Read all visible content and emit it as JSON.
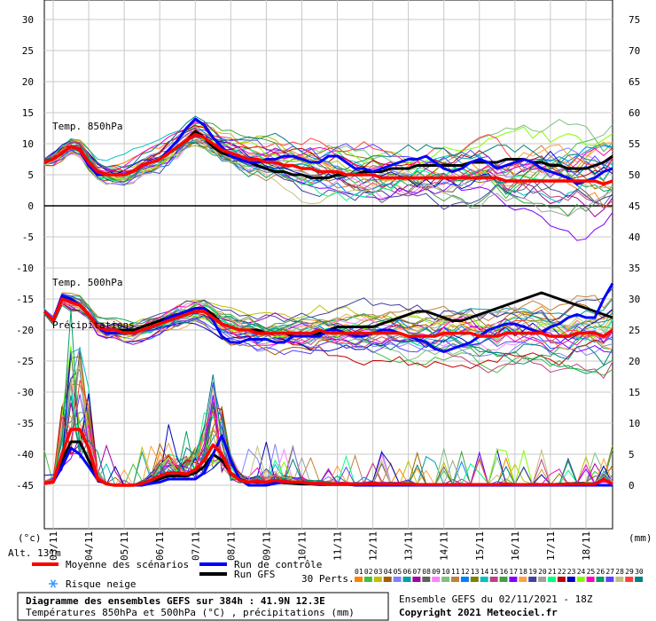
{
  "chart_data": {
    "type": "line",
    "left_axis": {
      "unit": "(°c)",
      "ticks": [
        "30",
        "25",
        "20",
        "15",
        "10",
        "5",
        "0",
        "-5",
        "-10",
        "-15",
        "-20",
        "-25",
        "-30",
        "-35",
        "-40",
        "-45"
      ],
      "range": [
        -45,
        30
      ]
    },
    "right_axis": {
      "unit": "(mm)",
      "ticks": [
        "75",
        "70",
        "65",
        "60",
        "55",
        "50",
        "45",
        "40",
        "35",
        "30",
        "25",
        "20",
        "15",
        "10",
        "5",
        "0"
      ],
      "range": [
        0,
        75
      ]
    },
    "dates": [
      "03/11",
      "04/11",
      "05/11",
      "06/11",
      "07/11",
      "08/11",
      "09/11",
      "10/11",
      "11/11",
      "12/11",
      "13/11",
      "14/11",
      "15/11",
      "16/11",
      "17/11",
      "18/11"
    ],
    "panel_labels": {
      "t850": "Temp. 850hPa",
      "t500": "Temp. 500hPa",
      "precip": "Précipitations"
    },
    "x_hours": [
      0,
      6,
      12,
      18,
      24,
      30,
      36,
      42,
      48,
      54,
      60,
      66,
      72,
      78,
      84,
      90,
      96,
      102,
      108,
      114,
      120,
      126,
      132,
      138,
      144,
      150,
      156,
      162,
      168,
      174,
      180,
      186,
      192,
      198,
      204,
      210,
      216,
      222,
      228,
      234,
      240,
      246,
      252,
      258,
      264,
      270,
      276,
      282,
      288,
      294,
      300,
      306,
      312,
      318,
      324,
      330,
      336,
      342,
      348,
      354,
      360,
      366,
      372,
      378,
      384
    ],
    "series": [
      {
        "name": "Moyenne des scénarios",
        "color": "#ff0000",
        "t850": [
          7,
          7.5,
          8.5,
          9.5,
          9,
          7,
          5.5,
          5,
          5,
          5,
          5.5,
          6.5,
          7,
          7.5,
          8.5,
          9.5,
          10.5,
          11.5,
          11,
          10,
          9,
          8.5,
          8,
          7.5,
          7.5,
          7,
          7,
          6.5,
          6.5,
          6,
          6,
          5.5,
          5.5,
          5.5,
          5,
          5,
          5,
          5,
          4.5,
          4.5,
          4.5,
          4.5,
          4.5,
          4.5,
          4.5,
          4.5,
          4.5,
          4.5,
          4.5,
          4.5,
          4.5,
          4.5,
          4,
          4,
          4,
          4,
          4,
          4,
          4,
          4,
          4,
          4,
          4,
          3.5,
          4
        ],
        "t500": [
          -17,
          -18.5,
          -15,
          -15.5,
          -16,
          -17.5,
          -19.5,
          -20,
          -20,
          -20.5,
          -20.5,
          -20,
          -19.5,
          -19,
          -18.5,
          -18,
          -17.5,
          -17,
          -17,
          -18,
          -19,
          -19.5,
          -20,
          -20,
          -20.5,
          -20.5,
          -20.5,
          -20.5,
          -20.5,
          -20.5,
          -20.5,
          -20,
          -20.5,
          -20.5,
          -20.5,
          -20.5,
          -20.5,
          -20.5,
          -20.5,
          -20.5,
          -20.5,
          -21,
          -21,
          -21,
          -21,
          -20.5,
          -20.5,
          -20.5,
          -20.5,
          -21,
          -21,
          -21,
          -20.5,
          -20.5,
          -20.5,
          -20.5,
          -20.5,
          -21,
          -21,
          -21,
          -20.5,
          -20.5,
          -20.5,
          -21,
          -20
        ],
        "precip": [
          0.3,
          0.5,
          5,
          9,
          9,
          6,
          1,
          0.2,
          0,
          0,
          0,
          0.3,
          0.8,
          1.5,
          2,
          2,
          1.8,
          2.5,
          4,
          6.5,
          5,
          2,
          0.8,
          0.5,
          0.6,
          0.5,
          0.8,
          0.6,
          0.5,
          0.5,
          0.3,
          0.3,
          0.2,
          0.2,
          0.2,
          0.2,
          0.2,
          0.3,
          0.2,
          0.2,
          0.2,
          0.2,
          0.1,
          0.1,
          0.1,
          0.1,
          0.1,
          0.1,
          0.1,
          0.1,
          0.1,
          0.1,
          0.2,
          0.1,
          0.1,
          0.1,
          0.1,
          0.1,
          0.1,
          0.2,
          0.2,
          0.2,
          0.2,
          1,
          0.2
        ]
      },
      {
        "name": "Run de contrôle",
        "color": "#0000ff",
        "t850": [
          7,
          7.5,
          8.5,
          9.5,
          9,
          6.5,
          5,
          5,
          5,
          5,
          5.5,
          6.5,
          7,
          7.5,
          9,
          10.5,
          12.5,
          14,
          13,
          11,
          9.5,
          8,
          7.5,
          7,
          7,
          7.5,
          7.5,
          8,
          8,
          7.5,
          7,
          7,
          8,
          8,
          7,
          6,
          6,
          5.5,
          6,
          6.5,
          7,
          7.5,
          7.5,
          8,
          7,
          6,
          5.5,
          6,
          7,
          7.5,
          7,
          6,
          6.5,
          7,
          7.5,
          7,
          6,
          5.5,
          5,
          4.5,
          3.5,
          4,
          4.5,
          5.5,
          6
        ],
        "t500": [
          -17,
          -18.5,
          -14.5,
          -15,
          -16,
          -17.5,
          -19.5,
          -20.5,
          -20.5,
          -20.5,
          -20.5,
          -20,
          -19.5,
          -19,
          -18,
          -17.5,
          -17,
          -16.5,
          -16.5,
          -18.5,
          -21,
          -22,
          -22,
          -21.5,
          -21.5,
          -21.5,
          -22,
          -22,
          -21,
          -21,
          -21,
          -21,
          -20,
          -20,
          -20.5,
          -21,
          -21,
          -20.5,
          -20,
          -20,
          -20.5,
          -21,
          -21.5,
          -22,
          -23,
          -23.5,
          -23,
          -22.5,
          -22,
          -21,
          -20,
          -19.5,
          -19,
          -19,
          -19.5,
          -20,
          -20.5,
          -19.5,
          -19,
          -18,
          -17.5,
          -18,
          -18,
          -15,
          -12.5
        ],
        "precip": [
          0.3,
          0.5,
          3,
          6,
          5,
          3,
          1,
          0.2,
          0,
          0,
          0,
          0,
          0.3,
          0.5,
          1,
          1,
          1,
          1,
          2,
          5,
          8,
          4,
          1,
          0,
          0,
          0,
          0.3,
          0.5,
          0.5,
          0.4,
          0.3,
          0.2,
          0.2,
          0.2,
          0.2,
          0,
          0,
          0,
          0,
          0,
          0,
          0,
          0,
          0,
          0,
          0,
          0,
          0,
          0,
          0,
          0,
          0,
          0,
          0,
          0,
          0,
          0,
          0,
          0,
          0,
          0,
          0,
          0,
          0,
          0
        ]
      },
      {
        "name": "Run GFS",
        "color": "#000000",
        "t850": [
          7,
          7.5,
          8.5,
          9.5,
          9,
          6.5,
          5,
          5,
          5,
          5,
          5.5,
          6.5,
          7,
          7.5,
          8.5,
          9.5,
          10.5,
          12,
          11,
          9.5,
          8.5,
          8,
          7.5,
          7,
          6.5,
          6,
          5.5,
          5.5,
          5,
          5,
          4.5,
          4.5,
          4.5,
          5,
          5,
          5,
          5.5,
          5.5,
          5.5,
          6,
          6,
          6,
          6.5,
          6.5,
          6.5,
          6.5,
          6.5,
          6.5,
          7,
          7,
          7,
          7,
          7.5,
          7.5,
          7.5,
          7,
          7,
          6.5,
          6.5,
          6,
          6,
          6,
          6.5,
          7,
          8
        ],
        "t500": [
          -17,
          -18.5,
          -14.5,
          -15,
          -16,
          -17.5,
          -19.5,
          -20,
          -20,
          -20,
          -20,
          -19.5,
          -19,
          -18.5,
          -18,
          -17.5,
          -17,
          -16.5,
          -16.5,
          -17.5,
          -19,
          -19.5,
          -20,
          -20,
          -20,
          -20.5,
          -20.5,
          -20.5,
          -21,
          -21,
          -21,
          -20.5,
          -20,
          -19.5,
          -19.5,
          -19.5,
          -19.5,
          -19.5,
          -19,
          -18.5,
          -18,
          -17.5,
          -17,
          -17,
          -17.5,
          -18,
          -18.5,
          -18.5,
          -18,
          -17.5,
          -17,
          -16.5,
          -16,
          -15.5,
          -15,
          -14.5,
          -14,
          -14.5,
          -15,
          -15.5,
          -16,
          -16.5,
          -17,
          -17.5,
          -18
        ],
        "precip": [
          0.3,
          0.5,
          4,
          7,
          7,
          4,
          1,
          0.2,
          0,
          0,
          0,
          0.3,
          0.5,
          1,
          1.5,
          1.5,
          1.5,
          2,
          3,
          5,
          4,
          2,
          1,
          0.5,
          0.5,
          0.5,
          0.5,
          0.4,
          0.3,
          0.2,
          0.2,
          0.1,
          0.1,
          0.1,
          0.1,
          0.1,
          0.1,
          0,
          0,
          0,
          0,
          0,
          0,
          0,
          0,
          0,
          0,
          0,
          0,
          0,
          0,
          0,
          0,
          0,
          0,
          0,
          0,
          0,
          0,
          0,
          0,
          0,
          0,
          0,
          0
        ]
      }
    ],
    "n_perturbations": 30,
    "perturbation_colors": [
      "#ff8000",
      "#40c040",
      "#c0c000",
      "#a06000",
      "#8080ff",
      "#00a0a0",
      "#a000a0",
      "#606060",
      "#ff80ff",
      "#80c080",
      "#c08040",
      "#0080ff",
      "#808000",
      "#00c0c0",
      "#c04080",
      "#40a040",
      "#8000ff",
      "#ffa040",
      "#4040a0",
      "#a0a0a0",
      "#00ff80",
      "#c00000",
      "#0000c0",
      "#80ff00",
      "#ff00c0",
      "#00a060",
      "#6040ff",
      "#c0c080",
      "#ff4040",
      "#008080"
    ]
  },
  "legend": {
    "mean_label": "Moyenne des scénarios",
    "control_label": "Run de contrôle",
    "gfs_label": "Run GFS",
    "snow_label": "Risque neige",
    "perts_label": "30 Perts.",
    "pert_numbers": [
      "01",
      "02",
      "03",
      "04",
      "05",
      "06",
      "07",
      "08",
      "09",
      "10",
      "11",
      "12",
      "13",
      "14",
      "15",
      "16",
      "17",
      "18",
      "19",
      "20",
      "21",
      "22",
      "23",
      "24",
      "25",
      "26",
      "27",
      "28",
      "29",
      "30"
    ],
    "alt_label": "Alt. 131m"
  },
  "footer": {
    "title": "Diagramme des ensembles GEFS sur 384h : 41.9N 12.3E",
    "subtitle": "Températures 850hPa et 500hPa (°C) , précipitations (mm)",
    "run": "Ensemble GEFS du 02/11/2021 - 18Z",
    "copyright": "Copyright 2021 Meteociel.fr"
  }
}
